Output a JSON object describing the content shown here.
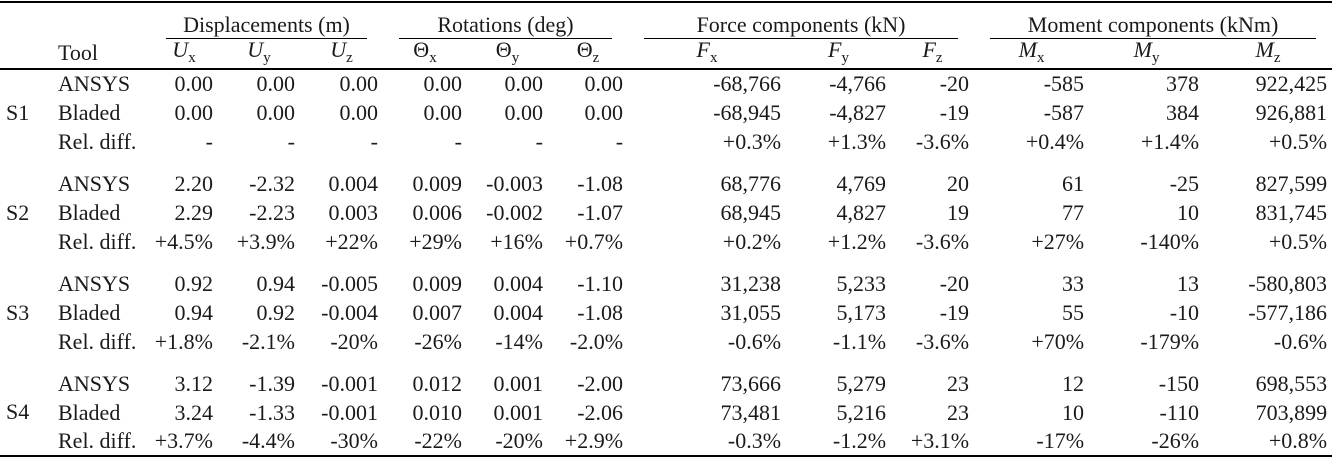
{
  "table": {
    "tool_header": "Tool",
    "col_groups": [
      {
        "label": "Displacements (m)"
      },
      {
        "label": "Rotations (deg)"
      },
      {
        "label": "Force components (kN)"
      },
      {
        "label": "Moment components (kNm)"
      }
    ],
    "subcols": [
      {
        "id": "u-x",
        "base": "U",
        "sub": "x",
        "italic": true
      },
      {
        "id": "u-y",
        "base": "U",
        "sub": "y",
        "italic": true
      },
      {
        "id": "u-z",
        "base": "U",
        "sub": "z",
        "italic": true
      },
      {
        "id": "theta-x",
        "base": "Θ",
        "sub": "x",
        "italic": false
      },
      {
        "id": "theta-y",
        "base": "Θ",
        "sub": "y",
        "italic": false
      },
      {
        "id": "theta-z",
        "base": "Θ",
        "sub": "z",
        "italic": false
      },
      {
        "id": "f-x",
        "base": "F",
        "sub": "x",
        "italic": true
      },
      {
        "id": "f-y",
        "base": "F",
        "sub": "y",
        "italic": true
      },
      {
        "id": "f-z",
        "base": "F",
        "sub": "z",
        "italic": true
      },
      {
        "id": "m-x",
        "base": "M",
        "sub": "x",
        "italic": true
      },
      {
        "id": "m-y",
        "base": "M",
        "sub": "y",
        "italic": true
      },
      {
        "id": "m-z",
        "base": "M",
        "sub": "z",
        "italic": true
      }
    ],
    "groups": [
      {
        "id": "S1",
        "rows": [
          {
            "tool": "ANSYS",
            "values": [
              "0.00",
              "0.00",
              "0.00",
              "0.00",
              "0.00",
              "0.00",
              "-68,766",
              "-4,766",
              "-20",
              "-585",
              "378",
              "922,425"
            ]
          },
          {
            "tool": "Bladed",
            "values": [
              "0.00",
              "0.00",
              "0.00",
              "0.00",
              "0.00",
              "0.00",
              "-68,945",
              "-4,827",
              "-19",
              "-587",
              "384",
              "926,881"
            ]
          },
          {
            "tool": "Rel. diff.",
            "values": [
              "-",
              "-",
              "-",
              "-",
              "-",
              "-",
              "+0.3%",
              "+1.3%",
              "-3.6%",
              "+0.4%",
              "+1.4%",
              "+0.5%"
            ]
          }
        ]
      },
      {
        "id": "S2",
        "rows": [
          {
            "tool": "ANSYS",
            "values": [
              "2.20",
              "-2.32",
              "0.004",
              "0.009",
              "-0.003",
              "-1.08",
              "68,776",
              "4,769",
              "20",
              "61",
              "-25",
              "827,599"
            ]
          },
          {
            "tool": "Bladed",
            "values": [
              "2.29",
              "-2.23",
              "0.003",
              "0.006",
              "-0.002",
              "-1.07",
              "68,945",
              "4,827",
              "19",
              "77",
              "10",
              "831,745"
            ]
          },
          {
            "tool": "Rel. diff.",
            "values": [
              "+4.5%",
              "+3.9%",
              "+22%",
              "+29%",
              "+16%",
              "+0.7%",
              "+0.2%",
              "+1.2%",
              "-3.6%",
              "+27%",
              "-140%",
              "+0.5%"
            ]
          }
        ]
      },
      {
        "id": "S3",
        "rows": [
          {
            "tool": "ANSYS",
            "values": [
              "0.92",
              "0.94",
              "-0.005",
              "0.009",
              "0.004",
              "-1.10",
              "31,238",
              "5,233",
              "-20",
              "33",
              "13",
              "-580,803"
            ]
          },
          {
            "tool": "Bladed",
            "values": [
              "0.94",
              "0.92",
              "-0.004",
              "0.007",
              "0.004",
              "-1.08",
              "31,055",
              "5,173",
              "-19",
              "55",
              "-10",
              "-577,186"
            ]
          },
          {
            "tool": "Rel. diff.",
            "values": [
              "+1.8%",
              "-2.1%",
              "-20%",
              "-26%",
              "-14%",
              "-2.0%",
              "-0.6%",
              "-1.1%",
              "-3.6%",
              "+70%",
              "-179%",
              "-0.6%"
            ]
          }
        ]
      },
      {
        "id": "S4",
        "rows": [
          {
            "tool": "ANSYS",
            "values": [
              "3.12",
              "-1.39",
              "-0.001",
              "0.012",
              "0.001",
              "-2.00",
              "73,666",
              "5,279",
              "23",
              "12",
              "-150",
              "698,553"
            ]
          },
          {
            "tool": "Bladed",
            "values": [
              "3.24",
              "-1.33",
              "-0.001",
              "0.010",
              "0.001",
              "-2.06",
              "73,481",
              "5,216",
              "23",
              "10",
              "-110",
              "703,899"
            ]
          },
          {
            "tool": "Rel. diff.",
            "values": [
              "+3.7%",
              "-4.4%",
              "-30%",
              "-22%",
              "-20%",
              "+2.9%",
              "-0.3%",
              "-1.2%",
              "+3.1%",
              "-17%",
              "-26%",
              "+0.8%"
            ]
          }
        ]
      }
    ],
    "colors": {
      "text": "#1a1a1a",
      "rule": "#000000",
      "background": "#ffffff"
    }
  }
}
